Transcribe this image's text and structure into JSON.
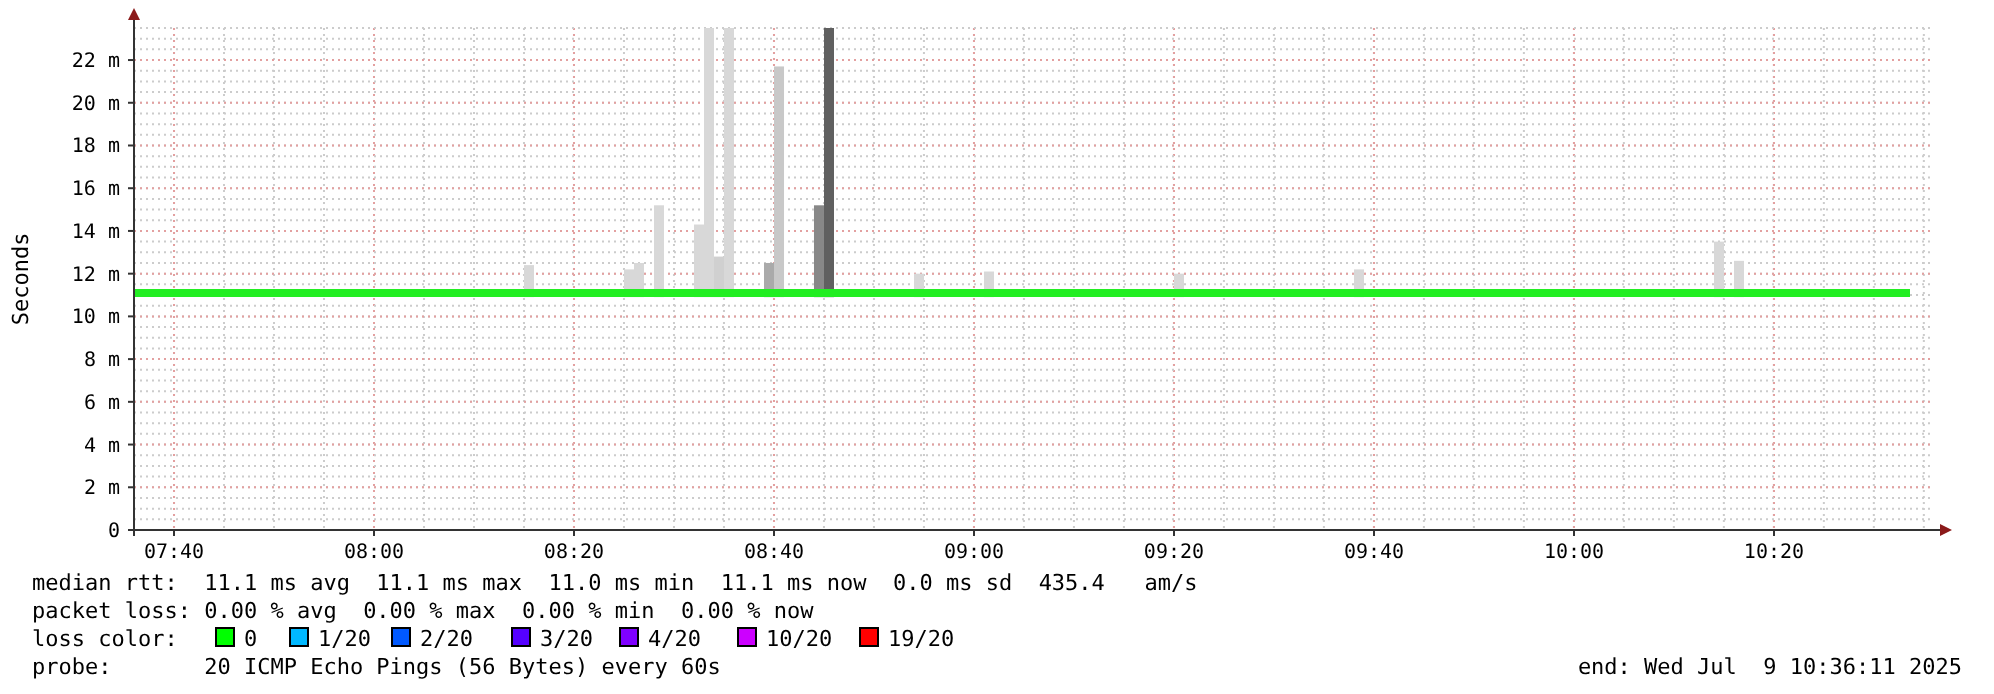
{
  "chart_data": {
    "type": "line",
    "ylabel": "Seconds",
    "xlim": [
      7.6,
      10.6
    ],
    "ylim": [
      0,
      23.5
    ],
    "xticks": [
      {
        "value": 7.6667,
        "label": "07:40"
      },
      {
        "value": 8,
        "label": "08:00"
      },
      {
        "value": 8.3333,
        "label": "08:20"
      },
      {
        "value": 8.6667,
        "label": "08:40"
      },
      {
        "value": 9,
        "label": "09:00"
      },
      {
        "value": 9.3333,
        "label": "09:20"
      },
      {
        "value": 9.6667,
        "label": "09:40"
      },
      {
        "value": 10,
        "label": "10:00"
      },
      {
        "value": 10.3333,
        "label": "10:20"
      }
    ],
    "yticks": [
      {
        "value": 0,
        "label": "0"
      },
      {
        "value": 2,
        "label": "2 m"
      },
      {
        "value": 4,
        "label": "4 m"
      },
      {
        "value": 6,
        "label": "6 m"
      },
      {
        "value": 8,
        "label": "8 m"
      },
      {
        "value": 10,
        "label": "10 m"
      },
      {
        "value": 12,
        "label": "12 m"
      },
      {
        "value": 14,
        "label": "14 m"
      },
      {
        "value": 16,
        "label": "16 m"
      },
      {
        "value": 18,
        "label": "18 m"
      },
      {
        "value": 20,
        "label": "20 m"
      },
      {
        "value": 22,
        "label": "22 m"
      }
    ],
    "grid": true,
    "series": [
      {
        "type": "bar",
        "x": [
          8.25,
          8.4167,
          8.4333,
          8.4667,
          8.5333,
          8.55,
          8.5667,
          8.5833,
          8.65,
          8.6667,
          8.7333,
          8.75,
          8.9,
          9.0167,
          9.3333,
          9.6333,
          10.2333,
          10.2667
        ],
        "base": [
          10.9,
          10.9,
          10.9,
          10.9,
          10.9,
          10.9,
          10.9,
          10.9,
          10.9,
          10.9,
          10.9,
          10.9,
          10.9,
          10.9,
          10.9,
          10.9,
          10.9,
          10.9
        ],
        "values": [
          1.5,
          1.3,
          1.6,
          4.3,
          3.4,
          12.6,
          1.9,
          12.6,
          1.6,
          10.8,
          4.3,
          12.6,
          1.1,
          1.2,
          1.1,
          1.3,
          2.6,
          1.7
        ],
        "colors": [
          "#d8d8d8",
          "#d8d8d8",
          "#d8d8d8",
          "#d8d8d8",
          "#d8d8d8",
          "#d8d8d8",
          "#d0d0d0",
          "#d8d8d8",
          "#aaaaaa",
          "#c8c8c8",
          "#888888",
          "#606060",
          "#d8d8d8",
          "#d8d8d8",
          "#d8d8d8",
          "#d8d8d8",
          "#d8d8d8",
          "#d8d8d8"
        ]
      },
      {
        "color": "#22ee22",
        "x": [
          7.6,
          8.0,
          8.5,
          9.0,
          9.5,
          10.0,
          10.56
        ],
        "values": [
          11.1,
          11.1,
          11.1,
          11.1,
          11.1,
          11.1,
          11.1
        ]
      }
    ],
    "annotations": [
      "median rtt:  11.1 ms avg  11.1 ms max  11.0 ms min  11.1 ms now  0.0 ms sd  435.4   am/s",
      "packet loss: 0.00 % avg  0.00 % max  0.00 % min  0.00 % now",
      "loss color:",
      "0",
      "1/20",
      "2/20",
      "3/20",
      "4/20",
      "10/20",
      "19/20",
      "probe:       20 ICMP Echo Pings (56 Bytes) every 60s",
      "end: Wed Jul  9 10:36:11 2025"
    ]
  }
}
